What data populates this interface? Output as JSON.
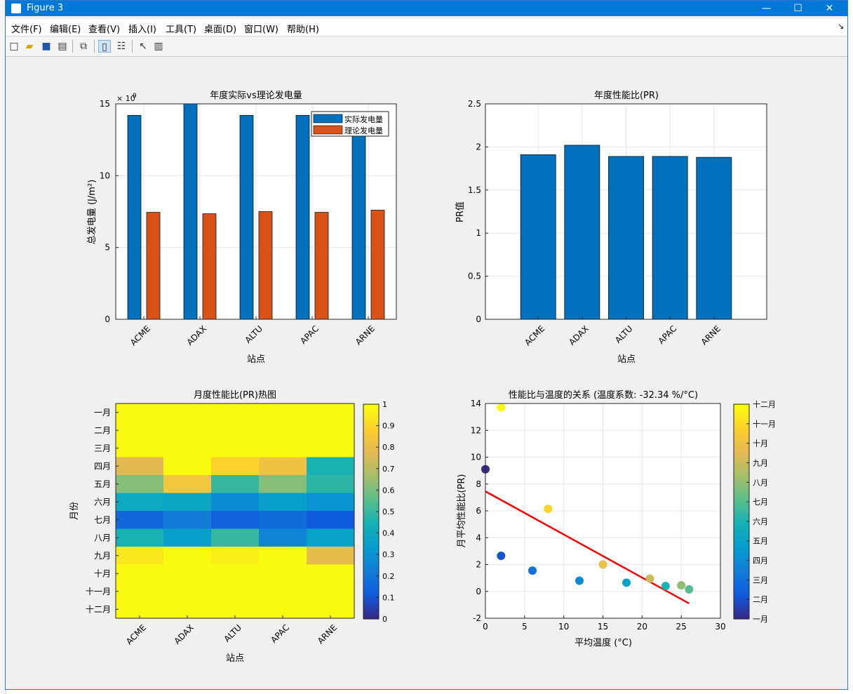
{
  "window": {
    "title": "Figure 3",
    "controls": {
      "minimize": "—",
      "maximize": "☐",
      "close": "✕"
    }
  },
  "menu": {
    "items": [
      "文件(F)",
      "编辑(E)",
      "查看(V)",
      "插入(I)",
      "工具(T)",
      "桌面(D)",
      "窗口(W)",
      "帮助(H)"
    ],
    "overflow": "↘"
  },
  "toolbar": {
    "icons": [
      "new-figure-icon",
      "open-icon",
      "save-icon",
      "print-icon",
      "link-plot-icon",
      "colorbar-icon",
      "legend-icon",
      "pointer-icon",
      "property-editor-icon"
    ],
    "active": "colorbar-icon"
  },
  "colors": {
    "bar_blue": "#0072bd",
    "bar_orange": "#d95319",
    "fit_line": "#ff0000"
  },
  "chart_data": [
    {
      "type": "bar",
      "title": "年度实际vs理论发电量",
      "xlabel": "站点",
      "ylabel": "总发电量 (J/m²)",
      "exponent_base": "× 10",
      "exponent": "9",
      "categories": [
        "ACME",
        "ADAX",
        "ALTU",
        "APAC",
        "ARNE"
      ],
      "series": [
        {
          "name": "实际发电量",
          "values": [
            14.2,
            15.0,
            14.2,
            14.2,
            14.2
          ]
        },
        {
          "name": "理论发电量",
          "values": [
            7.45,
            7.35,
            7.5,
            7.45,
            7.6
          ]
        }
      ],
      "ylim": [
        0,
        15
      ],
      "yticks": [
        0,
        5,
        10,
        15
      ],
      "legend": "top-right",
      "grid": true
    },
    {
      "type": "bar",
      "title": "年度性能比(PR)",
      "xlabel": "站点",
      "ylabel": "PR值",
      "categories": [
        "ACME",
        "ADAX",
        "ALTU",
        "APAC",
        "ARNE"
      ],
      "values": [
        1.91,
        2.02,
        1.89,
        1.89,
        1.88
      ],
      "ylim": [
        0,
        2.5
      ],
      "yticks": [
        0,
        0.5,
        1,
        1.5,
        2,
        2.5
      ],
      "grid": true
    },
    {
      "type": "heatmap",
      "title": "月度性能比(PR)热图",
      "xlabel": "站点",
      "ylabel": "月份",
      "x": [
        "ACME",
        "ADAX",
        "ALTU",
        "APAC",
        "ARNE"
      ],
      "y": [
        "一月",
        "二月",
        "三月",
        "四月",
        "五月",
        "六月",
        "七月",
        "八月",
        "九月",
        "十月",
        "十一月",
        "十二月"
      ],
      "values": [
        [
          1,
          1,
          1,
          1,
          1
        ],
        [
          1,
          1,
          1,
          1,
          1
        ],
        [
          1,
          1,
          1,
          1,
          1
        ],
        [
          0.78,
          1,
          0.9,
          0.83,
          0.45
        ],
        [
          0.62,
          0.85,
          0.5,
          0.62,
          0.48
        ],
        [
          0.4,
          0.38,
          0.28,
          0.35,
          0.3
        ],
        [
          0.15,
          0.22,
          0.13,
          0.16,
          0.11
        ],
        [
          0.45,
          0.35,
          0.5,
          0.25,
          0.36
        ],
        [
          0.95,
          1,
          0.97,
          1,
          0.8
        ],
        [
          1,
          1,
          1,
          1,
          1
        ],
        [
          1,
          1,
          1,
          1,
          1
        ],
        [
          1,
          1,
          1,
          1,
          1
        ]
      ],
      "clim": [
        0,
        1
      ],
      "colorbar_ticks": [
        "0",
        "0.1",
        "0.2",
        "0.3",
        "0.4",
        "0.5",
        "0.6",
        "0.7",
        "0.8",
        "0.9",
        "1"
      ]
    },
    {
      "type": "scatter",
      "title": "性能比与温度的关系 (温度系数: -32.34 %/°C)",
      "xlabel": "平均温度 (°C)",
      "ylabel": "月平均性能比(PR)",
      "points": [
        {
          "month": 1,
          "x": 0,
          "y": 9.1
        },
        {
          "month": 2,
          "x": 2,
          "y": 2.65
        },
        {
          "month": 3,
          "x": 6,
          "y": 1.55
        },
        {
          "month": 4,
          "x": 12,
          "y": 0.8
        },
        {
          "month": 5,
          "x": 18,
          "y": 0.65
        },
        {
          "month": 6,
          "x": 23,
          "y": 0.4
        },
        {
          "month": 7,
          "x": 26,
          "y": 0.15
        },
        {
          "month": 8,
          "x": 25,
          "y": 0.45
        },
        {
          "month": 9,
          "x": 21,
          "y": 0.95
        },
        {
          "month": 10,
          "x": 15,
          "y": 2.0
        },
        {
          "month": 11,
          "x": 8,
          "y": 6.15
        },
        {
          "month": 12,
          "x": 2,
          "y": 13.7
        }
      ],
      "fit_line": {
        "x": [
          0,
          26
        ],
        "y": [
          7.45,
          -0.9
        ]
      },
      "xlim": [
        0,
        30
      ],
      "ylim": [
        -2,
        14
      ],
      "xticks": [
        0,
        5,
        10,
        15,
        20,
        25,
        30
      ],
      "yticks": [
        -2,
        0,
        2,
        4,
        6,
        8,
        10,
        12,
        14
      ],
      "grid": true,
      "colorbar_ticks": [
        "一月",
        "二月",
        "三月",
        "四月",
        "五月",
        "六月",
        "七月",
        "八月",
        "九月",
        "十月",
        "十一月",
        "十二月"
      ]
    }
  ]
}
